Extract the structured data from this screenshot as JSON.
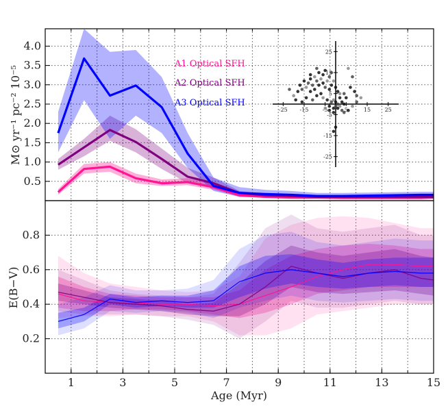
{
  "chart_data": [
    {
      "type": "line",
      "panel": "top",
      "title": "",
      "xlabel": "",
      "ylabel": "M⊙ yr⁻¹ pc⁻² 10⁻⁵",
      "xlim": [
        0,
        15
      ],
      "ylim": [
        0,
        4.45
      ],
      "yticks": [
        "0.5",
        "1.0",
        "1.5",
        "2.0",
        "2.5",
        "3.0",
        "3.5",
        "4.0"
      ],
      "x": [
        0.5,
        1.5,
        2.5,
        3.5,
        4.5,
        5.5,
        6.5,
        7.5,
        8.5,
        9.5,
        10.5,
        11.5,
        12.5,
        13.5,
        14.5,
        15
      ],
      "series": [
        {
          "name": "A1 Optical SFH",
          "color": "#ff1493",
          "values": [
            0.22,
            0.82,
            0.88,
            0.58,
            0.45,
            0.48,
            0.35,
            0.14,
            0.1,
            0.08,
            0.08,
            0.07,
            0.07,
            0.07,
            0.07,
            0.08
          ],
          "lower": [
            0.15,
            0.7,
            0.75,
            0.45,
            0.38,
            0.4,
            0.28,
            0.1,
            0.07,
            0.05,
            0.05,
            0.05,
            0.05,
            0.05,
            0.05,
            0.05
          ],
          "upper": [
            0.3,
            0.95,
            1.0,
            0.7,
            0.55,
            0.58,
            0.45,
            0.2,
            0.13,
            0.11,
            0.11,
            0.1,
            0.1,
            0.1,
            0.1,
            0.11
          ]
        },
        {
          "name": "A2 Optical SFH",
          "color": "#800080",
          "values": [
            0.93,
            1.38,
            1.83,
            1.52,
            1.08,
            0.62,
            0.45,
            0.2,
            0.14,
            0.12,
            0.1,
            0.1,
            0.1,
            0.1,
            0.1,
            0.1
          ],
          "lower": [
            0.8,
            1.15,
            1.55,
            1.25,
            0.82,
            0.45,
            0.35,
            0.15,
            0.1,
            0.08,
            0.07,
            0.07,
            0.07,
            0.07,
            0.07,
            0.07
          ],
          "upper": [
            1.08,
            1.6,
            2.2,
            1.85,
            1.35,
            0.85,
            0.6,
            0.25,
            0.18,
            0.16,
            0.14,
            0.14,
            0.14,
            0.14,
            0.14,
            0.14
          ]
        },
        {
          "name": "A3 Optical SFH",
          "color": "#0000ff",
          "values": [
            1.75,
            3.68,
            2.72,
            2.98,
            2.42,
            1.22,
            0.38,
            0.2,
            0.17,
            0.15,
            0.12,
            0.12,
            0.13,
            0.14,
            0.15,
            0.15
          ],
          "lower": [
            1.25,
            2.6,
            1.6,
            2.2,
            1.75,
            0.85,
            0.25,
            0.1,
            0.08,
            0.07,
            0.07,
            0.07,
            0.08,
            0.09,
            0.1,
            0.1
          ],
          "upper": [
            2.3,
            4.5,
            3.85,
            3.9,
            3.2,
            1.75,
            0.6,
            0.35,
            0.28,
            0.25,
            0.2,
            0.2,
            0.21,
            0.22,
            0.23,
            0.23
          ]
        }
      ],
      "legend": {
        "placement": "top-center",
        "entries": [
          "A1 Optical SFH",
          "A2 Optical SFH",
          "A3 Optical SFH"
        ]
      },
      "grid": true
    },
    {
      "type": "scatter",
      "panel": "inset",
      "title": "",
      "xlim": [
        -30,
        30
      ],
      "ylim": [
        -30,
        30
      ],
      "xticks": [
        "-25",
        "-15",
        "-5",
        "5",
        "15",
        "25"
      ],
      "yticks": [
        "25",
        "15",
        "5",
        "-5",
        "-15",
        "-25"
      ],
      "points": [
        [
          -20,
          4
        ],
        [
          -18,
          6
        ],
        [
          -17,
          9
        ],
        [
          -16,
          7
        ],
        [
          -15,
          11
        ],
        [
          -14,
          8
        ],
        [
          -13,
          10
        ],
        [
          -12,
          12
        ],
        [
          -12,
          6
        ],
        [
          -11,
          9
        ],
        [
          -10,
          13
        ],
        [
          -10,
          7
        ],
        [
          -9,
          11
        ],
        [
          -8,
          9
        ],
        [
          -8,
          15
        ],
        [
          -7,
          12
        ],
        [
          -6,
          10
        ],
        [
          -6,
          14
        ],
        [
          -5,
          8
        ],
        [
          -5,
          16
        ],
        [
          -4,
          11
        ],
        [
          -3,
          13
        ],
        [
          -3,
          7
        ],
        [
          -2,
          9
        ],
        [
          -2,
          15
        ],
        [
          -1,
          11
        ],
        [
          -14,
          3
        ],
        [
          -11,
          2
        ],
        [
          -9,
          4
        ],
        [
          -16,
          1
        ],
        [
          -6,
          3
        ],
        [
          -4,
          2
        ],
        [
          -3,
          -1
        ],
        [
          -2,
          1
        ],
        [
          -1,
          -2
        ],
        [
          -1,
          2
        ],
        [
          0,
          -1
        ],
        [
          0,
          1
        ],
        [
          1,
          -2
        ],
        [
          1,
          0
        ],
        [
          2,
          -1
        ],
        [
          2,
          3
        ],
        [
          3,
          -3
        ],
        [
          3,
          1
        ],
        [
          4,
          0
        ],
        [
          2,
          5
        ],
        [
          1,
          6
        ],
        [
          0,
          8
        ],
        [
          4,
          5
        ],
        [
          5,
          3
        ],
        [
          6,
          17
        ],
        [
          8,
          13
        ],
        [
          7,
          8
        ],
        [
          9,
          6
        ],
        [
          10,
          4
        ],
        [
          12,
          3
        ],
        [
          6,
          -3
        ],
        [
          4,
          -4
        ],
        [
          -1,
          -4
        ],
        [
          -3,
          -3
        ],
        [
          -5,
          -2
        ],
        [
          -1,
          -13
        ],
        [
          0,
          -11
        ],
        [
          -22,
          7
        ],
        [
          -19,
          2
        ],
        [
          8,
          -1
        ],
        [
          10,
          1
        ],
        [
          -7,
          5
        ],
        [
          -12,
          14
        ],
        [
          -9,
          17
        ]
      ],
      "grid": false
    },
    {
      "type": "area",
      "panel": "bottom",
      "title": "",
      "xlabel": "Age (Myr)",
      "ylabel": "E(B−V)",
      "xlim": [
        0,
        15
      ],
      "ylim": [
        0,
        1.0
      ],
      "xticks": [
        "1",
        "3",
        "5",
        "7",
        "9",
        "11",
        "13",
        "15"
      ],
      "yticks": [
        "0.2",
        "0.4",
        "0.6",
        "0.8"
      ],
      "x": [
        0.5,
        1.5,
        2.5,
        3.5,
        4.5,
        5.5,
        6.5,
        7.5,
        8.5,
        9.5,
        10.5,
        11.5,
        12.5,
        13.5,
        14.5,
        15
      ],
      "series": [
        {
          "name": "A1",
          "color": "#ff1493",
          "values": [
            0.46,
            0.42,
            0.41,
            0.41,
            0.4,
            0.4,
            0.39,
            0.4,
            0.45,
            0.5,
            0.56,
            0.6,
            0.63,
            0.63,
            0.62,
            0.62
          ],
          "band_inner": [
            [
              0.38,
              0.56
            ],
            [
              0.36,
              0.5
            ],
            [
              0.36,
              0.46
            ],
            [
              0.37,
              0.45
            ],
            [
              0.37,
              0.44
            ],
            [
              0.36,
              0.44
            ],
            [
              0.34,
              0.44
            ],
            [
              0.32,
              0.48
            ],
            [
              0.35,
              0.6
            ],
            [
              0.4,
              0.68
            ],
            [
              0.46,
              0.72
            ],
            [
              0.48,
              0.74
            ],
            [
              0.5,
              0.75
            ],
            [
              0.5,
              0.74
            ],
            [
              0.5,
              0.72
            ],
            [
              0.5,
              0.72
            ]
          ],
          "band_outer": [
            [
              0.32,
              0.68
            ],
            [
              0.33,
              0.58
            ],
            [
              0.33,
              0.52
            ],
            [
              0.34,
              0.5
            ],
            [
              0.33,
              0.48
            ],
            [
              0.33,
              0.47
            ],
            [
              0.3,
              0.48
            ],
            [
              0.22,
              0.56
            ],
            [
              0.22,
              0.78
            ],
            [
              0.26,
              0.86
            ],
            [
              0.34,
              0.9
            ],
            [
              0.36,
              0.91
            ],
            [
              0.38,
              0.9
            ],
            [
              0.4,
              0.87
            ],
            [
              0.4,
              0.84
            ],
            [
              0.4,
              0.84
            ]
          ]
        },
        {
          "name": "A2",
          "color": "#800080",
          "values": [
            0.47,
            0.44,
            0.41,
            0.4,
            0.39,
            0.37,
            0.36,
            0.4,
            0.5,
            0.62,
            0.58,
            0.55,
            0.58,
            0.6,
            0.55,
            0.54
          ],
          "band_inner": [
            [
              0.42,
              0.52
            ],
            [
              0.4,
              0.48
            ],
            [
              0.38,
              0.44
            ],
            [
              0.37,
              0.43
            ],
            [
              0.36,
              0.42
            ],
            [
              0.34,
              0.4
            ],
            [
              0.33,
              0.41
            ],
            [
              0.33,
              0.52
            ],
            [
              0.4,
              0.65
            ],
            [
              0.5,
              0.74
            ],
            [
              0.47,
              0.7
            ],
            [
              0.46,
              0.68
            ],
            [
              0.47,
              0.7
            ],
            [
              0.48,
              0.72
            ],
            [
              0.46,
              0.68
            ],
            [
              0.45,
              0.67
            ]
          ],
          "band_outer": [
            [
              0.36,
              0.6
            ],
            [
              0.34,
              0.54
            ],
            [
              0.34,
              0.48
            ],
            [
              0.34,
              0.46
            ],
            [
              0.33,
              0.45
            ],
            [
              0.31,
              0.44
            ],
            [
              0.28,
              0.46
            ],
            [
              0.2,
              0.64
            ],
            [
              0.3,
              0.84
            ],
            [
              0.42,
              0.92
            ],
            [
              0.38,
              0.84
            ],
            [
              0.38,
              0.82
            ],
            [
              0.4,
              0.84
            ],
            [
              0.42,
              0.86
            ],
            [
              0.4,
              0.8
            ],
            [
              0.4,
              0.8
            ]
          ]
        },
        {
          "name": "A3",
          "color": "#0000ff",
          "values": [
            0.3,
            0.34,
            0.43,
            0.41,
            0.42,
            0.41,
            0.42,
            0.53,
            0.58,
            0.6,
            0.58,
            0.56,
            0.58,
            0.59,
            0.58,
            0.58
          ],
          "band_inner": [
            [
              0.26,
              0.35
            ],
            [
              0.3,
              0.38
            ],
            [
              0.4,
              0.46
            ],
            [
              0.38,
              0.44
            ],
            [
              0.39,
              0.45
            ],
            [
              0.38,
              0.45
            ],
            [
              0.38,
              0.48
            ],
            [
              0.44,
              0.62
            ],
            [
              0.49,
              0.68
            ],
            [
              0.52,
              0.69
            ],
            [
              0.5,
              0.66
            ],
            [
              0.49,
              0.64
            ],
            [
              0.5,
              0.66
            ],
            [
              0.51,
              0.67
            ],
            [
              0.5,
              0.67
            ],
            [
              0.5,
              0.67
            ]
          ],
          "band_outer": [
            [
              0.22,
              0.4
            ],
            [
              0.26,
              0.44
            ],
            [
              0.36,
              0.51
            ],
            [
              0.35,
              0.48
            ],
            [
              0.36,
              0.48
            ],
            [
              0.35,
              0.49
            ],
            [
              0.32,
              0.54
            ],
            [
              0.38,
              0.72
            ],
            [
              0.42,
              0.8
            ],
            [
              0.45,
              0.82
            ],
            [
              0.42,
              0.76
            ],
            [
              0.41,
              0.74
            ],
            [
              0.42,
              0.76
            ],
            [
              0.43,
              0.78
            ],
            [
              0.42,
              0.77
            ],
            [
              0.42,
              0.77
            ]
          ]
        }
      ],
      "grid": true
    }
  ]
}
